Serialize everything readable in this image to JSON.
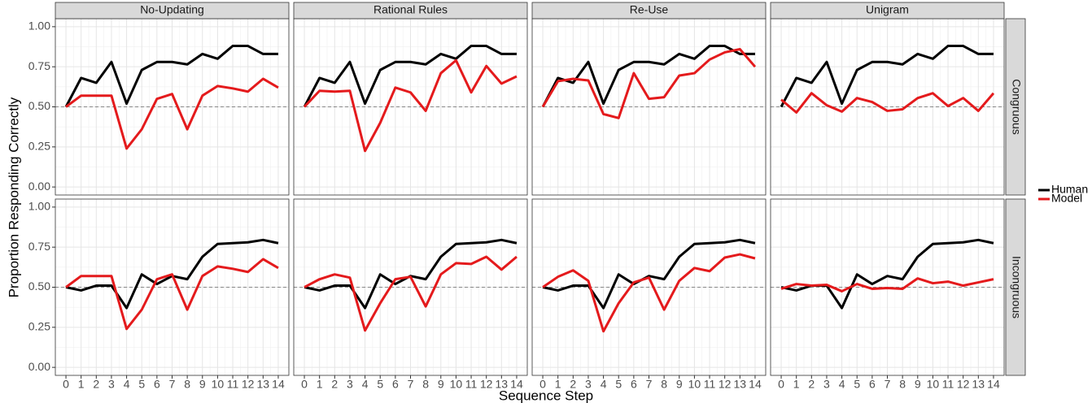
{
  "chart_data": {
    "type": "line",
    "xlabel": "Sequence Step",
    "ylabel": "Proportion Responding Correctly",
    "columns": [
      "No-Updating",
      "Rational Rules",
      "Re-Use",
      "Unigram"
    ],
    "series": [
      {
        "name": "Human",
        "color": "#000000"
      },
      {
        "name": "Model",
        "color": "#e41a1c"
      }
    ],
    "x": [
      0,
      1,
      2,
      3,
      4,
      5,
      6,
      7,
      8,
      9,
      10,
      11,
      12,
      13,
      14
    ],
    "xlim": [
      -0.7,
      14.7
    ],
    "xticks": [
      0,
      1,
      2,
      3,
      4,
      5,
      6,
      7,
      8,
      9,
      10,
      11,
      12,
      13,
      14
    ],
    "ylim": [
      -0.05,
      1.05
    ],
    "yticks": [
      {
        "value": 0,
        "label": "0.00"
      },
      {
        "value": 0.25,
        "label": "0.25"
      },
      {
        "value": 0.5,
        "label": "0.50"
      },
      {
        "value": 0.75,
        "label": "0.75"
      },
      {
        "value": 1,
        "label": "1.00"
      }
    ],
    "hline": 0.5,
    "grid": true,
    "rows": [
      {
        "name": "Congruous",
        "panels": [
          {
            "values": [
              [
                0.5,
                0.68,
                0.65,
                0.78,
                0.52,
                0.73,
                0.78,
                0.78,
                0.765,
                0.83,
                0.8,
                0.88,
                0.88,
                0.83,
                0.83
              ],
              [
                0.5,
                0.57,
                0.57,
                0.57,
                0.24,
                0.36,
                0.55,
                0.58,
                0.36,
                0.57,
                0.63,
                0.615,
                0.595,
                0.675,
                0.62
              ]
            ]
          },
          {
            "values": [
              [
                0.5,
                0.68,
                0.65,
                0.78,
                0.52,
                0.73,
                0.78,
                0.78,
                0.765,
                0.83,
                0.8,
                0.88,
                0.88,
                0.83,
                0.83
              ],
              [
                0.5,
                0.6,
                0.595,
                0.6,
                0.225,
                0.4,
                0.62,
                0.59,
                0.475,
                0.71,
                0.79,
                0.59,
                0.755,
                0.645,
                0.69
              ]
            ]
          },
          {
            "values": [
              [
                0.5,
                0.68,
                0.65,
                0.78,
                0.52,
                0.73,
                0.78,
                0.78,
                0.765,
                0.83,
                0.8,
                0.88,
                0.88,
                0.83,
                0.83
              ],
              [
                0.5,
                0.66,
                0.675,
                0.665,
                0.455,
                0.43,
                0.71,
                0.55,
                0.56,
                0.695,
                0.71,
                0.795,
                0.84,
                0.86,
                0.75
              ]
            ]
          },
          {
            "values": [
              [
                0.5,
                0.68,
                0.65,
                0.78,
                0.52,
                0.73,
                0.78,
                0.78,
                0.765,
                0.83,
                0.8,
                0.88,
                0.88,
                0.83,
                0.83
              ],
              [
                0.545,
                0.465,
                0.585,
                0.51,
                0.47,
                0.555,
                0.53,
                0.475,
                0.485,
                0.555,
                0.585,
                0.505,
                0.555,
                0.475,
                0.585
              ]
            ]
          }
        ]
      },
      {
        "name": "Incongruous",
        "panels": [
          {
            "values": [
              [
                0.5,
                0.48,
                0.51,
                0.51,
                0.37,
                0.58,
                0.52,
                0.57,
                0.55,
                0.69,
                0.77,
                0.775,
                0.78,
                0.795,
                0.775
              ],
              [
                0.5,
                0.57,
                0.57,
                0.57,
                0.24,
                0.36,
                0.55,
                0.58,
                0.36,
                0.57,
                0.63,
                0.615,
                0.595,
                0.675,
                0.62
              ]
            ]
          },
          {
            "values": [
              [
                0.5,
                0.48,
                0.51,
                0.51,
                0.37,
                0.58,
                0.52,
                0.57,
                0.55,
                0.69,
                0.77,
                0.775,
                0.78,
                0.795,
                0.775
              ],
              [
                0.5,
                0.55,
                0.58,
                0.56,
                0.23,
                0.4,
                0.55,
                0.565,
                0.38,
                0.58,
                0.65,
                0.645,
                0.69,
                0.61,
                0.69
              ]
            ]
          },
          {
            "values": [
              [
                0.5,
                0.48,
                0.51,
                0.51,
                0.37,
                0.58,
                0.52,
                0.57,
                0.55,
                0.69,
                0.77,
                0.775,
                0.78,
                0.795,
                0.775
              ],
              [
                0.5,
                0.565,
                0.605,
                0.54,
                0.225,
                0.4,
                0.53,
                0.56,
                0.36,
                0.54,
                0.62,
                0.6,
                0.685,
                0.705,
                0.68
              ]
            ]
          },
          {
            "values": [
              [
                0.5,
                0.48,
                0.51,
                0.51,
                0.37,
                0.58,
                0.52,
                0.57,
                0.55,
                0.69,
                0.77,
                0.775,
                0.78,
                0.795,
                0.775
              ],
              [
                0.49,
                0.52,
                0.51,
                0.515,
                0.475,
                0.52,
                0.49,
                0.495,
                0.49,
                0.555,
                0.525,
                0.535,
                0.51,
                0.53,
                0.55
              ]
            ]
          }
        ]
      }
    ]
  }
}
